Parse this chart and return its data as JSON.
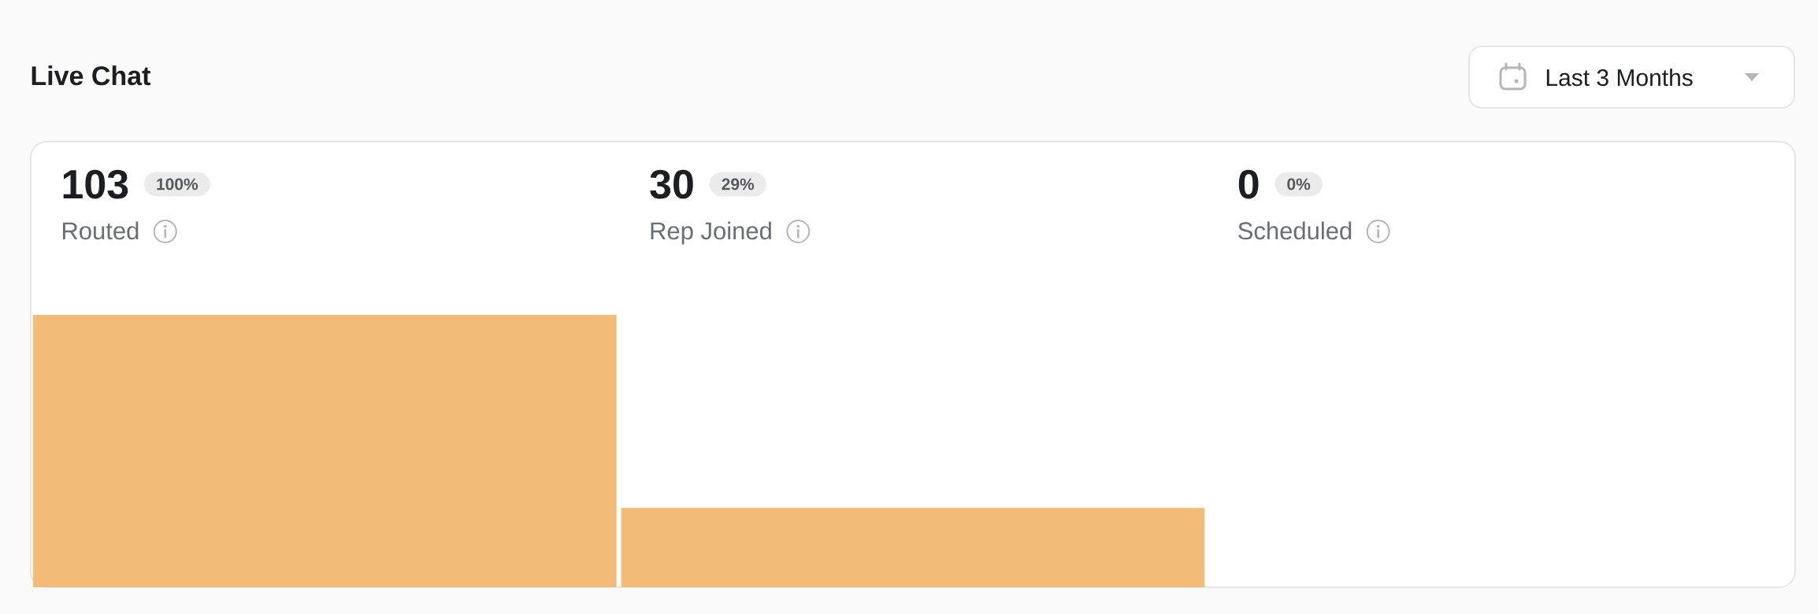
{
  "chart_data": {
    "type": "bar",
    "title": "Live Chat",
    "categories": [
      "Routed",
      "Rep Joined",
      "Scheduled"
    ],
    "values": [
      103,
      30,
      0
    ],
    "color": "#f2bb78",
    "data_labels": true,
    "annotations": [
      "100%",
      "29%",
      "0%",
      "Last 3 Months"
    ]
  }
}
